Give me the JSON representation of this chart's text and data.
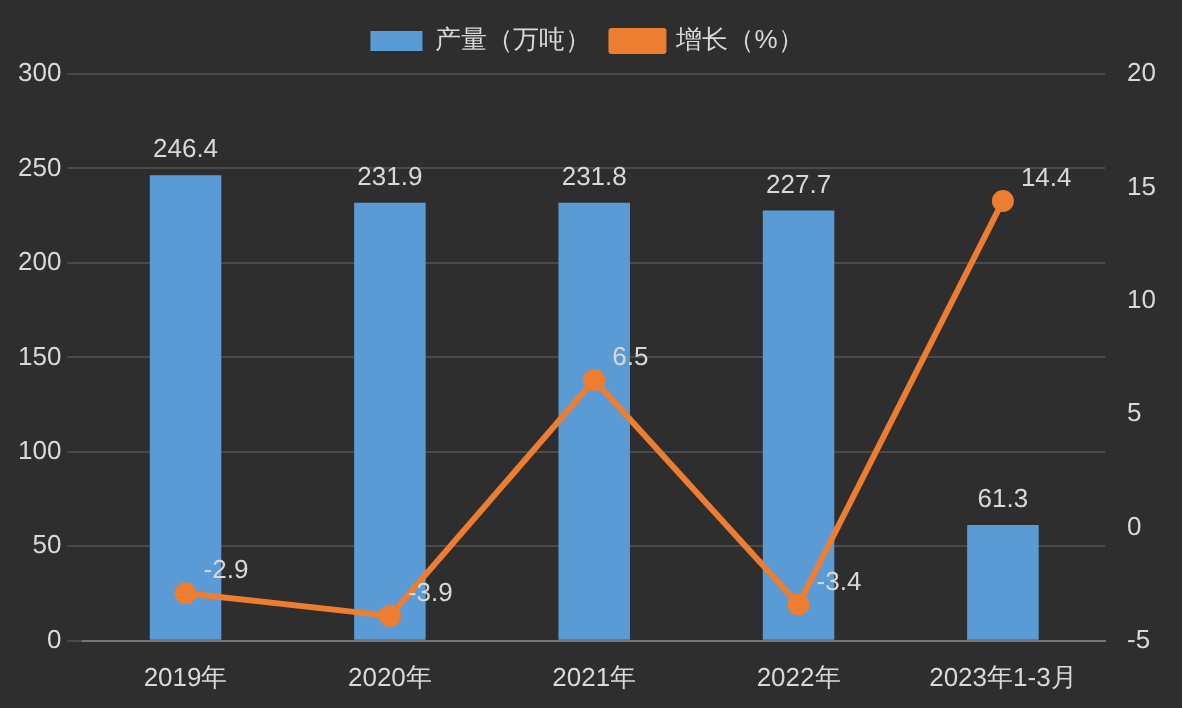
{
  "chart_data": {
    "type": "bar",
    "categories": [
      "2019年",
      "2020年",
      "2021年",
      "2022年",
      "2023年1-3月"
    ],
    "series": [
      {
        "name": "产量（万吨）",
        "color": "#5b9bd5",
        "values": [
          246.4,
          231.9,
          231.8,
          227.7,
          61.3
        ]
      },
      {
        "name": "增长（%）",
        "type": "line",
        "axis": "y2",
        "color": "#ed7d31",
        "values": [
          -2.9,
          -3.9,
          6.5,
          -3.4,
          14.4
        ]
      }
    ],
    "ylim": [
      0,
      300
    ],
    "yticks": [
      0,
      50,
      100,
      150,
      200,
      250,
      300
    ],
    "y2lim": [
      -5,
      20
    ],
    "y2ticks": [
      -5,
      0,
      5,
      10,
      15,
      20
    ],
    "grid": "y",
    "legend": "top",
    "marker": "circle",
    "data_labels": true
  }
}
